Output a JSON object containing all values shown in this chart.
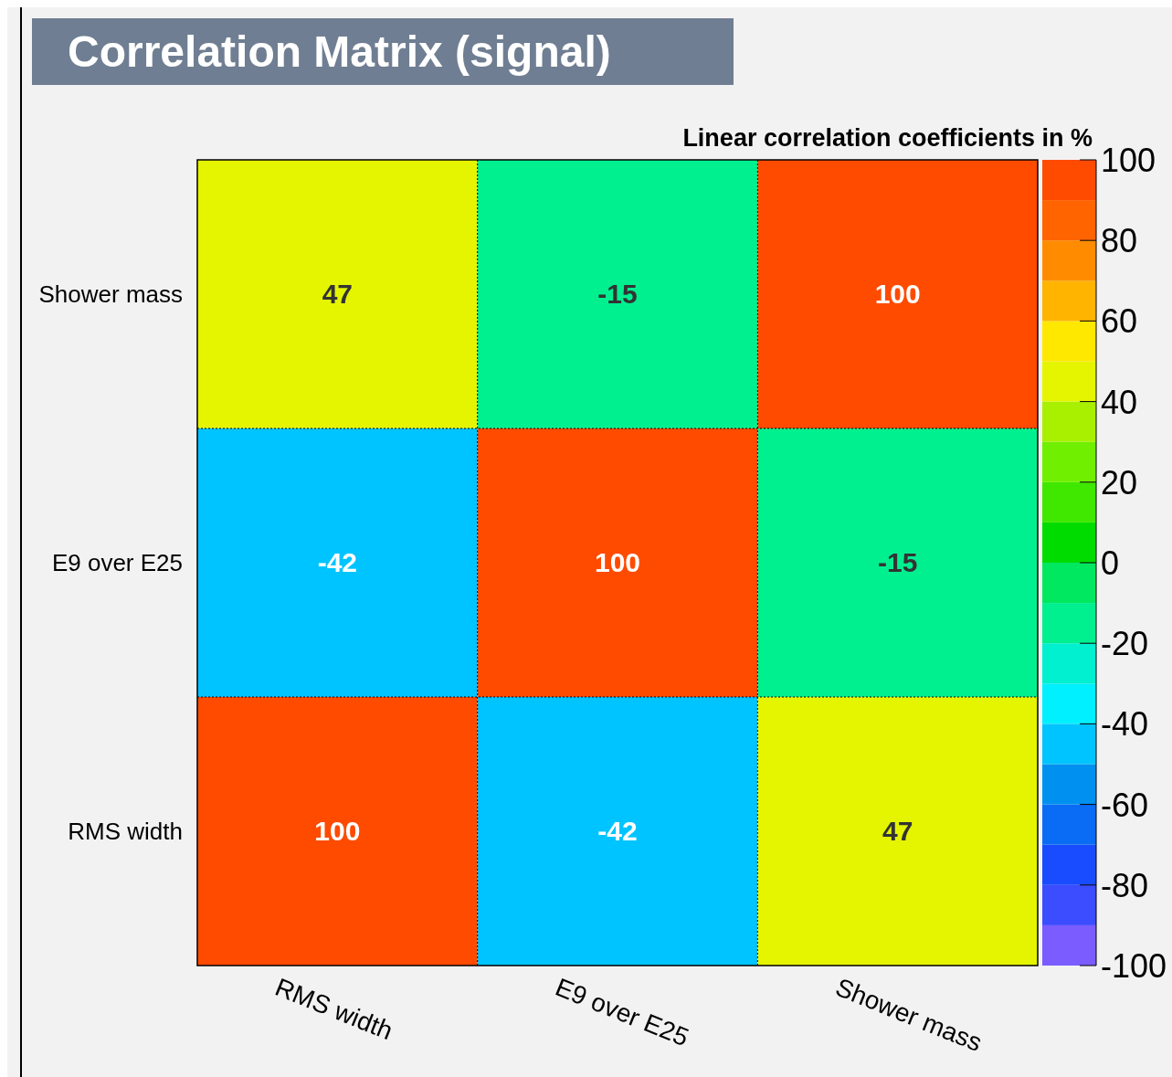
{
  "chart_data": {
    "type": "heatmap",
    "title": "Correlation Matrix (signal)",
    "clabel": "Linear correlation coefficients in %",
    "categories": [
      "RMS width",
      "E9 over E25",
      "Shower mass"
    ],
    "y_categories": [
      "Shower mass",
      "E9 over E25",
      "RMS width"
    ],
    "cells": [
      [
        47,
        -15,
        100
      ],
      [
        -42,
        100,
        -15
      ],
      [
        100,
        -42,
        47
      ]
    ],
    "clim": [
      -100,
      100
    ],
    "cticks": [
      -100,
      -80,
      -60,
      -40,
      -20,
      0,
      20,
      40,
      60,
      80,
      100
    ],
    "data_labels": true
  }
}
